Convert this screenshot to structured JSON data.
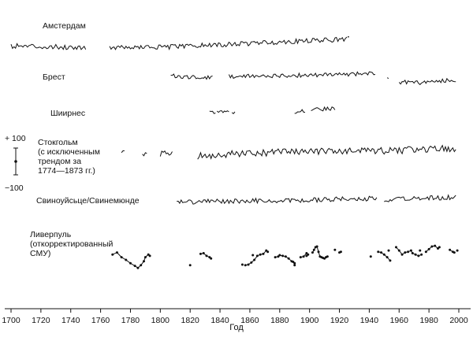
{
  "chart_data": {
    "type": "line",
    "title": "",
    "xlabel": "Год",
    "ylabel": "",
    "xlim": [
      1698,
      2002
    ],
    "x_ticks": [
      1700,
      1720,
      1740,
      1760,
      1780,
      1800,
      1820,
      1840,
      1860,
      1880,
      1900,
      1920,
      1940,
      1960,
      1980,
      2000
    ],
    "scale_bar": {
      "top_label": "+ 100",
      "bottom_label": "−100",
      "unit_span": 200
    },
    "series": [
      {
        "name": "Амстердам",
        "label_lines": [
          "Амстердам"
        ],
        "kind": "noisy",
        "segments": [
          [
            1700,
            1750
          ],
          [
            1766,
            1925
          ]
        ],
        "trend": [
          [
            1700,
            10
          ],
          [
            1740,
            0
          ],
          [
            1766,
            -2
          ],
          [
            1800,
            0
          ],
          [
            1840,
            18
          ],
          [
            1880,
            40
          ],
          [
            1925,
            60
          ]
        ],
        "amp": 18,
        "extra_points": [
          [
            1926,
            78
          ]
        ]
      },
      {
        "name": "Брест",
        "label_lines": [
          "Брест"
        ],
        "kind": "noisy",
        "segments": [
          [
            1807,
            1835
          ],
          [
            1846,
            1944
          ],
          [
            1952,
            1953
          ],
          [
            1960,
            1998
          ]
        ],
        "trend": [
          [
            1807,
            10
          ],
          [
            1835,
            -5
          ],
          [
            1846,
            5
          ],
          [
            1900,
            15
          ],
          [
            1944,
            30
          ],
          [
            1952,
            -20
          ],
          [
            1960,
            -35
          ],
          [
            1975,
            -40
          ],
          [
            1998,
            -20
          ]
        ],
        "amp": 16
      },
      {
        "name": "Шиирнес",
        "label_lines": [
          "Шиирнес"
        ],
        "kind": "noisy",
        "segments": [
          [
            1833,
            1837
          ],
          [
            1838,
            1846
          ],
          [
            1848,
            1850
          ],
          [
            1890,
            1897
          ],
          [
            1901,
            1917
          ]
        ],
        "trend": [
          [
            1833,
            10
          ],
          [
            1850,
            15
          ],
          [
            1890,
            20
          ],
          [
            1917,
            45
          ]
        ],
        "amp": 15
      },
      {
        "name": "Стокгольм",
        "label_lines": [
          "Стокгольм",
          "(с исключенным",
          "трендом за",
          "1774—1873 гг.)"
        ],
        "kind": "noisy",
        "segments": [
          [
            1774,
            1776
          ],
          [
            1788,
            1791
          ],
          [
            1800,
            1808
          ],
          [
            1825,
            1998
          ]
        ],
        "trend": [
          [
            1774,
            0
          ],
          [
            1800,
            0
          ],
          [
            1825,
            -20
          ],
          [
            1850,
            0
          ],
          [
            1900,
            15
          ],
          [
            1950,
            20
          ],
          [
            1998,
            40
          ]
        ],
        "amp": 26
      },
      {
        "name": "Свиноуйсьце/Свинемюнде",
        "label_lines": [
          "Свиноуйсьце/Свинемюнде"
        ],
        "kind": "noisy",
        "segments": [
          [
            1811,
            1945
          ],
          [
            1950,
            1998
          ]
        ],
        "trend": [
          [
            1811,
            -10
          ],
          [
            1850,
            0
          ],
          [
            1900,
            5
          ],
          [
            1945,
            18
          ],
          [
            1950,
            10
          ],
          [
            1998,
            28
          ]
        ],
        "amp": 18
      },
      {
        "name": "Ливерпуль (откорректированный СМУ)",
        "label_lines": [
          "Ливерпуль",
          "(откорректированный",
          "СМУ)"
        ],
        "kind": "dots",
        "segments": [
          [
            [
              1768,
              40
            ],
            [
              1771,
              55
            ],
            [
              1774,
              20
            ],
            [
              1777,
              0
            ],
            [
              1780,
              -25
            ],
            [
              1783,
              -45
            ],
            [
              1785,
              -60
            ],
            [
              1787,
              -40
            ],
            [
              1789,
              -10
            ],
            [
              1790,
              20
            ],
            [
              1792,
              40
            ],
            [
              1793,
              30
            ]
          ],
          [
            [
              1827,
              45
            ],
            [
              1829,
              50
            ],
            [
              1831,
              30
            ],
            [
              1833,
              20
            ],
            [
              1834,
              10
            ]
          ],
          [
            [
              1857,
              -40
            ],
            [
              1859,
              -35
            ],
            [
              1861,
              -20
            ],
            [
              1863,
              0
            ],
            [
              1865,
              30
            ],
            [
              1867,
              40
            ],
            [
              1869,
              45
            ],
            [
              1871,
              70
            ],
            [
              1872,
              60
            ]
          ],
          [
            [
              1877,
              20
            ],
            [
              1879,
              25
            ],
            [
              1880,
              35
            ],
            [
              1882,
              30
            ],
            [
              1884,
              25
            ],
            [
              1886,
              10
            ],
            [
              1888,
              -10
            ],
            [
              1889,
              -15
            ],
            [
              1890,
              -25
            ]
          ],
          [
            [
              1894,
              20
            ],
            [
              1896,
              25
            ],
            [
              1898,
              50
            ],
            [
              1899,
              40
            ]
          ],
          [
            [
              1902,
              55
            ],
            [
              1903,
              75
            ],
            [
              1904,
              95
            ],
            [
              1905,
              100
            ],
            [
              1906,
              60
            ],
            [
              1907,
              25
            ],
            [
              1908,
              20
            ],
            [
              1909,
              15
            ],
            [
              1910,
              10
            ],
            [
              1911,
              20
            ],
            [
              1912,
              25
            ]
          ],
          [
            [
              1946,
              60
            ],
            [
              1948,
              55
            ],
            [
              1950,
              40
            ],
            [
              1952,
              20
            ],
            [
              1954,
              -5
            ]
          ],
          [
            [
              1958,
              95
            ],
            [
              1960,
              70
            ],
            [
              1962,
              40
            ],
            [
              1964,
              55
            ],
            [
              1966,
              60
            ],
            [
              1968,
              70
            ],
            [
              1969,
              50
            ],
            [
              1971,
              40
            ],
            [
              1973,
              30
            ],
            [
              1975,
              40
            ]
          ],
          [
            [
              1978,
              60
            ],
            [
              1980,
              80
            ],
            [
              1982,
              100
            ],
            [
              1984,
              105
            ],
            [
              1986,
              85
            ],
            [
              1987,
              95
            ]
          ],
          [
            [
              1994,
              75
            ],
            [
              1996,
              60
            ],
            [
              1997,
              55
            ]
          ]
        ],
        "isolated": [
          [
            1820,
            -40
          ],
          [
            1855,
            -35
          ],
          [
            1862,
            35
          ],
          [
            1890,
            -40
          ],
          [
            1898,
            30
          ],
          [
            1917,
            75
          ],
          [
            1920,
            55
          ],
          [
            1921,
            60
          ],
          [
            1941,
            25
          ],
          [
            1953,
            70
          ],
          [
            1974,
            70
          ],
          [
            1999,
            70
          ]
        ]
      }
    ]
  }
}
